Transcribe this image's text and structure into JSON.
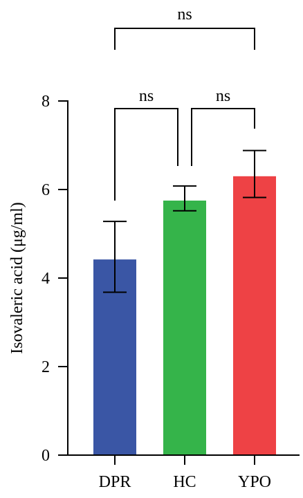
{
  "chart_data": {
    "type": "bar",
    "title": "",
    "xlabel": "",
    "ylabel": "Isovaleric acid (μg/ml)",
    "ylim": [
      0,
      8
    ],
    "yticks": [
      0,
      2,
      4,
      6,
      8
    ],
    "grid": false,
    "categories": [
      "DPR",
      "HC",
      "YPO"
    ],
    "values": [
      4.42,
      5.75,
      6.3
    ],
    "error_low": [
      3.68,
      5.52,
      5.82
    ],
    "error_high": [
      5.28,
      6.08,
      6.88
    ],
    "colors": [
      "#3A56A5",
      "#35B44A",
      "#EE4245"
    ],
    "significance": [
      {
        "from": "DPR",
        "to": "HC",
        "label": "ns"
      },
      {
        "from": "HC",
        "to": "YPO",
        "label": "ns"
      },
      {
        "from": "DPR",
        "to": "YPO",
        "label": "ns"
      }
    ]
  }
}
